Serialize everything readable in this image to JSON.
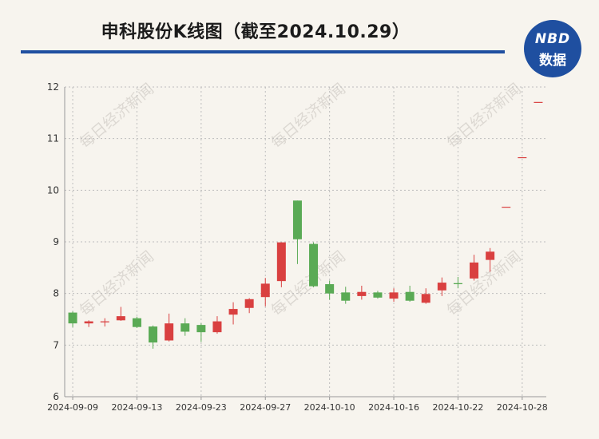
{
  "title": "申科股份K线图（截至2024.10.29）",
  "logo": {
    "line1": "NBD",
    "line2": "数据"
  },
  "watermark": "每日经济新闻",
  "colors": {
    "up": "#d94040",
    "down": "#5aaa55",
    "accent": "#1f4fa0"
  },
  "chart_data": {
    "type": "candlestick",
    "title": "申科股份K线图（截至2024.10.29）",
    "xlabel": "",
    "ylabel": "",
    "ylim": [
      6,
      12
    ],
    "yticks": [
      6,
      7,
      8,
      9,
      10,
      11,
      12
    ],
    "grid": true,
    "legend": "none",
    "xtick_labels": [
      "2024-09-09",
      "2024-09-13",
      "2024-09-23",
      "2024-09-27",
      "2024-10-10",
      "2024-10-16",
      "2024-10-22",
      "2024-10-28"
    ],
    "xtick_index": [
      0,
      4,
      8,
      12,
      16,
      20,
      24,
      28
    ],
    "candles": [
      {
        "date": "2024-09-09",
        "open": 7.63,
        "close": 7.42,
        "high": 7.65,
        "low": 7.35
      },
      {
        "date": "2024-09-10",
        "open": 7.42,
        "close": 7.46,
        "high": 7.48,
        "low": 7.35
      },
      {
        "date": "2024-09-11",
        "open": 7.44,
        "close": 7.46,
        "high": 7.52,
        "low": 7.36
      },
      {
        "date": "2024-09-12",
        "open": 7.48,
        "close": 7.56,
        "high": 7.74,
        "low": 7.47
      },
      {
        "date": "2024-09-13",
        "open": 7.52,
        "close": 7.35,
        "high": 7.55,
        "low": 7.33
      },
      {
        "date": "2024-09-18",
        "open": 7.36,
        "close": 7.05,
        "high": 7.38,
        "low": 6.93
      },
      {
        "date": "2024-09-19",
        "open": 7.09,
        "close": 7.42,
        "high": 7.61,
        "low": 7.07
      },
      {
        "date": "2024-09-20",
        "open": 7.42,
        "close": 7.26,
        "high": 7.52,
        "low": 7.18
      },
      {
        "date": "2024-09-23",
        "open": 7.39,
        "close": 7.25,
        "high": 7.42,
        "low": 7.06
      },
      {
        "date": "2024-09-24",
        "open": 7.25,
        "close": 7.46,
        "high": 7.56,
        "low": 7.22
      },
      {
        "date": "2024-09-25",
        "open": 7.59,
        "close": 7.7,
        "high": 7.83,
        "low": 7.4
      },
      {
        "date": "2024-09-26",
        "open": 7.72,
        "close": 7.89,
        "high": 7.91,
        "low": 7.62
      },
      {
        "date": "2024-09-27",
        "open": 7.93,
        "close": 8.19,
        "high": 8.3,
        "low": 7.75
      },
      {
        "date": "2024-09-30",
        "open": 8.24,
        "close": 8.99,
        "high": 8.99,
        "low": 8.12
      },
      {
        "date": "2024-10-08",
        "open": 9.8,
        "close": 9.05,
        "high": 9.8,
        "low": 8.57
      },
      {
        "date": "2024-10-09",
        "open": 8.96,
        "close": 8.14,
        "high": 8.99,
        "low": 8.12
      },
      {
        "date": "2024-10-10",
        "open": 8.18,
        "close": 8.0,
        "high": 8.25,
        "low": 7.88
      },
      {
        "date": "2024-10-11",
        "open": 8.02,
        "close": 7.86,
        "high": 8.13,
        "low": 7.8
      },
      {
        "date": "2024-10-14",
        "open": 7.95,
        "close": 8.03,
        "high": 8.15,
        "low": 7.88
      },
      {
        "date": "2024-10-15",
        "open": 8.02,
        "close": 7.92,
        "high": 8.05,
        "low": 7.9
      },
      {
        "date": "2024-10-16",
        "open": 7.9,
        "close": 8.02,
        "high": 8.1,
        "low": 7.84
      },
      {
        "date": "2024-10-17",
        "open": 8.03,
        "close": 7.86,
        "high": 8.15,
        "low": 7.84
      },
      {
        "date": "2024-10-18",
        "open": 7.82,
        "close": 7.99,
        "high": 8.1,
        "low": 7.8
      },
      {
        "date": "2024-10-21",
        "open": 8.06,
        "close": 8.21,
        "high": 8.31,
        "low": 7.95
      },
      {
        "date": "2024-10-22",
        "open": 8.2,
        "close": 8.18,
        "high": 8.32,
        "low": 8.1
      },
      {
        "date": "2024-10-23",
        "open": 8.29,
        "close": 8.6,
        "high": 8.75,
        "low": 8.25
      },
      {
        "date": "2024-10-24",
        "open": 8.65,
        "close": 8.81,
        "high": 8.88,
        "low": 8.42
      },
      {
        "date": "2024-10-25",
        "open": 9.68,
        "close": 9.68,
        "high": 9.68,
        "low": 9.68
      },
      {
        "date": "2024-10-28",
        "open": 10.64,
        "close": 10.64,
        "high": 10.64,
        "low": 10.64
      },
      {
        "date": "2024-10-29",
        "open": 11.71,
        "close": 11.71,
        "high": 11.71,
        "low": 11.71
      }
    ]
  }
}
